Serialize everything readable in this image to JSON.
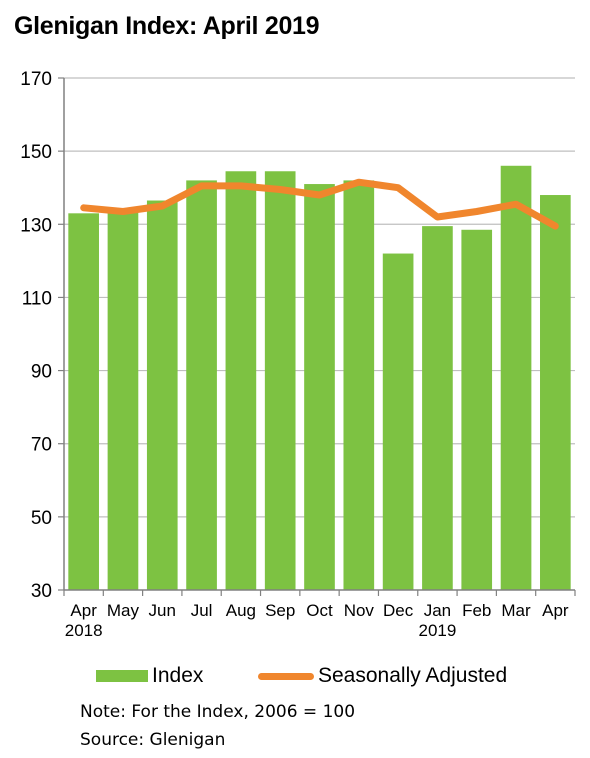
{
  "chart_data": {
    "type": "bar",
    "title": "Glenigan Index: April 2019",
    "categories": [
      "Apr",
      "May",
      "Jun",
      "Jul",
      "Aug",
      "Sep",
      "Oct",
      "Nov",
      "Dec",
      "Jan",
      "Feb",
      "Mar",
      "Apr"
    ],
    "year_labels": [
      "2018",
      "",
      "",
      "",
      "",
      "",
      "",
      "",
      "",
      "2019",
      "",
      "",
      ""
    ],
    "ylim": [
      30,
      170
    ],
    "yticks": [
      30,
      50,
      70,
      90,
      110,
      130,
      150,
      170
    ],
    "grid": true,
    "legend_position": "bottom",
    "series": [
      {
        "name": "Index",
        "type": "bar",
        "color": "#7dc242",
        "values": [
          133,
          134,
          136.5,
          142,
          144.5,
          144.5,
          141,
          142,
          122,
          129.5,
          128.5,
          146,
          138
        ]
      },
      {
        "name": "Seasonally Adjusted",
        "type": "line",
        "color": "#f0862d",
        "values": [
          134.5,
          133.5,
          135,
          140.5,
          140.5,
          139.5,
          138,
          141.5,
          140,
          132,
          133.5,
          135.5,
          129.5
        ]
      }
    ]
  },
  "notes": {
    "note": "Note: For the Index, 2006 = 100",
    "source": "Source: Glenigan"
  }
}
